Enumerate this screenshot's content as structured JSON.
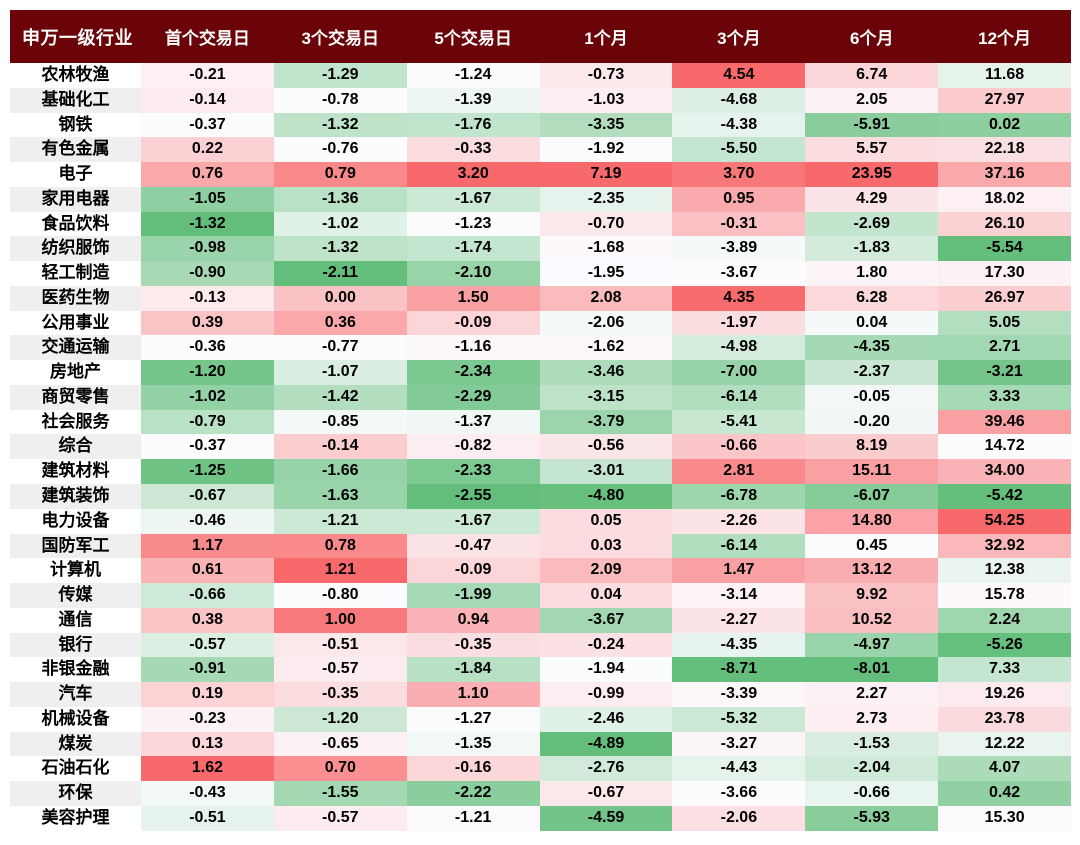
{
  "colors": {
    "header_bg": "#6A0408",
    "header_text": "#FFFFFF",
    "label_band_alt": "#EFEFEF",
    "label_band": "#FFFFFF",
    "cell_text": "#000000",
    "page_bg": "#FFFFFF",
    "scale_min_green": "#63BE7B",
    "scale_mid_white": "#FCFCFF",
    "scale_max_red": "#F8696B"
  },
  "chart_data": {
    "type": "heatmap",
    "title": "",
    "row_header": "申万一级行业",
    "columns": [
      "首个交易日",
      "3个交易日",
      "5个交易日",
      "1个月",
      "3个月",
      "6个月",
      "12个月"
    ],
    "value_format": "fixed-2",
    "color_scale": {
      "type": "3-color per column",
      "min": "#63BE7B",
      "mid_at_median": "#FCFCFF",
      "max": "#F8696B"
    },
    "rows": [
      {
        "name": "农林牧渔",
        "values": [
          -0.21,
          -1.29,
          -1.24,
          -0.73,
          4.54,
          6.74,
          11.68
        ]
      },
      {
        "name": "基础化工",
        "values": [
          -0.14,
          -0.78,
          -1.39,
          -1.03,
          -4.68,
          2.05,
          27.97
        ]
      },
      {
        "name": "钢铁",
        "values": [
          -0.37,
          -1.32,
          -1.76,
          -3.35,
          -4.38,
          -5.91,
          0.02
        ]
      },
      {
        "name": "有色金属",
        "values": [
          0.22,
          -0.76,
          -0.33,
          -1.92,
          -5.5,
          5.57,
          22.18
        ]
      },
      {
        "name": "电子",
        "values": [
          0.76,
          0.79,
          3.2,
          7.19,
          3.7,
          23.95,
          37.16
        ]
      },
      {
        "name": "家用电器",
        "values": [
          -1.05,
          -1.36,
          -1.67,
          -2.35,
          0.95,
          4.29,
          18.02
        ]
      },
      {
        "name": "食品饮料",
        "values": [
          -1.32,
          -1.02,
          -1.23,
          -0.7,
          -0.31,
          -2.69,
          26.1
        ]
      },
      {
        "name": "纺织服饰",
        "values": [
          -0.98,
          -1.32,
          -1.74,
          -1.68,
          -3.89,
          -1.83,
          -5.54
        ]
      },
      {
        "name": "轻工制造",
        "values": [
          -0.9,
          -2.11,
          -2.1,
          -1.95,
          -3.67,
          1.8,
          17.3
        ]
      },
      {
        "name": "医药生物",
        "values": [
          -0.13,
          0.0,
          1.5,
          2.08,
          4.35,
          6.28,
          26.97
        ]
      },
      {
        "name": "公用事业",
        "values": [
          0.39,
          0.36,
          -0.09,
          -2.06,
          -1.97,
          0.04,
          5.05
        ]
      },
      {
        "name": "交通运输",
        "values": [
          -0.36,
          -0.77,
          -1.16,
          -1.62,
          -4.98,
          -4.35,
          2.71
        ]
      },
      {
        "name": "房地产",
        "values": [
          -1.2,
          -1.07,
          -2.34,
          -3.46,
          -7.0,
          -2.37,
          -3.21
        ]
      },
      {
        "name": "商贸零售",
        "values": [
          -1.02,
          -1.42,
          -2.29,
          -3.15,
          -6.14,
          -0.05,
          3.33
        ]
      },
      {
        "name": "社会服务",
        "values": [
          -0.79,
          -0.85,
          -1.37,
          -3.79,
          -5.41,
          -0.2,
          39.46
        ]
      },
      {
        "name": "综合",
        "values": [
          -0.37,
          -0.14,
          -0.82,
          -0.56,
          -0.66,
          8.19,
          14.72
        ]
      },
      {
        "name": "建筑材料",
        "values": [
          -1.25,
          -1.66,
          -2.33,
          -3.01,
          2.81,
          15.11,
          34.0
        ]
      },
      {
        "name": "建筑装饰",
        "values": [
          -0.67,
          -1.63,
          -2.55,
          -4.8,
          -6.78,
          -6.07,
          -5.42
        ]
      },
      {
        "name": "电力设备",
        "values": [
          -0.46,
          -1.21,
          -1.67,
          0.05,
          -2.26,
          14.8,
          54.25
        ]
      },
      {
        "name": "国防军工",
        "values": [
          1.17,
          0.78,
          -0.47,
          0.03,
          -6.14,
          0.45,
          32.92
        ]
      },
      {
        "name": "计算机",
        "values": [
          0.61,
          1.21,
          -0.09,
          2.09,
          1.47,
          13.12,
          12.38
        ]
      },
      {
        "name": "传媒",
        "values": [
          -0.66,
          -0.8,
          -1.99,
          0.04,
          -3.14,
          9.92,
          15.78
        ]
      },
      {
        "name": "通信",
        "values": [
          0.38,
          1.0,
          0.94,
          -3.67,
          -2.27,
          10.52,
          2.24
        ]
      },
      {
        "name": "银行",
        "values": [
          -0.57,
          -0.51,
          -0.35,
          -0.24,
          -4.35,
          -4.97,
          -5.26
        ]
      },
      {
        "name": "非银金融",
        "values": [
          -0.91,
          -0.57,
          -1.84,
          -1.94,
          -8.71,
          -8.01,
          7.33
        ]
      },
      {
        "name": "汽车",
        "values": [
          0.19,
          -0.35,
          1.1,
          -0.99,
          -3.39,
          2.27,
          19.26
        ]
      },
      {
        "name": "机械设备",
        "values": [
          -0.23,
          -1.2,
          -1.27,
          -2.46,
          -5.32,
          2.73,
          23.78
        ]
      },
      {
        "name": "煤炭",
        "values": [
          0.13,
          -0.65,
          -1.35,
          -4.89,
          -3.27,
          -1.53,
          12.22
        ]
      },
      {
        "name": "石油石化",
        "values": [
          1.62,
          0.7,
          -0.16,
          -2.76,
          -4.43,
          -2.04,
          4.07
        ]
      },
      {
        "name": "环保",
        "values": [
          -0.43,
          -1.55,
          -2.22,
          -0.67,
          -3.66,
          -0.66,
          0.42
        ]
      },
      {
        "name": "美容护理",
        "values": [
          -0.51,
          -0.57,
          -1.21,
          -4.59,
          -2.06,
          -5.93,
          15.3
        ]
      }
    ]
  }
}
